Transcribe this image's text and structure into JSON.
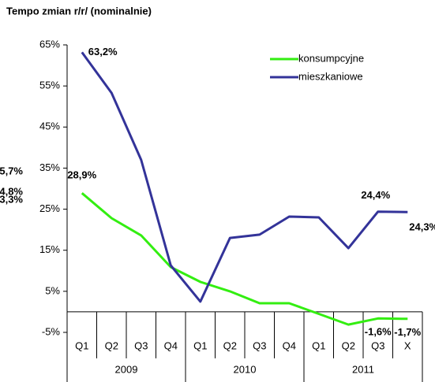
{
  "chart_data": {
    "type": "line",
    "title": "Tempo zmian r/r/ (nominalnie)",
    "categories": [
      "Q1",
      "Q2",
      "Q3",
      "Q4",
      "Q1",
      "Q2",
      "Q3",
      "Q4",
      "Q1",
      "Q2",
      "Q3",
      "X"
    ],
    "groups": [
      {
        "name": "2009",
        "span": 4
      },
      {
        "name": "2010",
        "span": 4
      },
      {
        "name": "2011",
        "span": 4
      }
    ],
    "series": [
      {
        "name": "konsumpcyjne",
        "color": "#33ee11",
        "label_color": "#229922",
        "values": [
          28.9,
          22.8,
          18.6,
          10.9,
          7.3,
          5,
          2.1,
          2.1,
          -0.5,
          -3.1,
          -1.6,
          -1.7
        ],
        "value_labels": [
          "28,9%",
          null,
          null,
          null,
          null,
          null,
          null,
          null,
          null,
          null,
          "-1,6%",
          "-1,7%"
        ]
      },
      {
        "name": "mieszkaniowe",
        "color": "#333399",
        "label_color": "#000000",
        "values": [
          63.2,
          53.3,
          37,
          11.3,
          2.5,
          18,
          18.8,
          23.2,
          23,
          15.5,
          24.4,
          24.3
        ],
        "value_labels": [
          "63,2%",
          null,
          null,
          null,
          null,
          null,
          null,
          null,
          null,
          null,
          "24,4%",
          "24,3%"
        ]
      }
    ],
    "ylim": [
      -5,
      65
    ],
    "yticks": [
      {
        "value": -5,
        "label": "-5%"
      },
      {
        "value": 5,
        "label": "5%"
      },
      {
        "value": 15,
        "label": "15%"
      },
      {
        "value": 25,
        "label": "25%"
      },
      {
        "value": 35,
        "label": "35%"
      },
      {
        "value": 45,
        "label": "45%"
      },
      {
        "value": 55,
        "label": "55%"
      },
      {
        "value": 65,
        "label": "65%"
      }
    ],
    "legend": "top-right",
    "clipped_labels": [
      {
        "text": "5,7%",
        "color": "#ee1111"
      },
      {
        "text": "4,8%",
        "color": "#000000"
      },
      {
        "text": "3,3%",
        "color": "#2233dd"
      }
    ]
  }
}
